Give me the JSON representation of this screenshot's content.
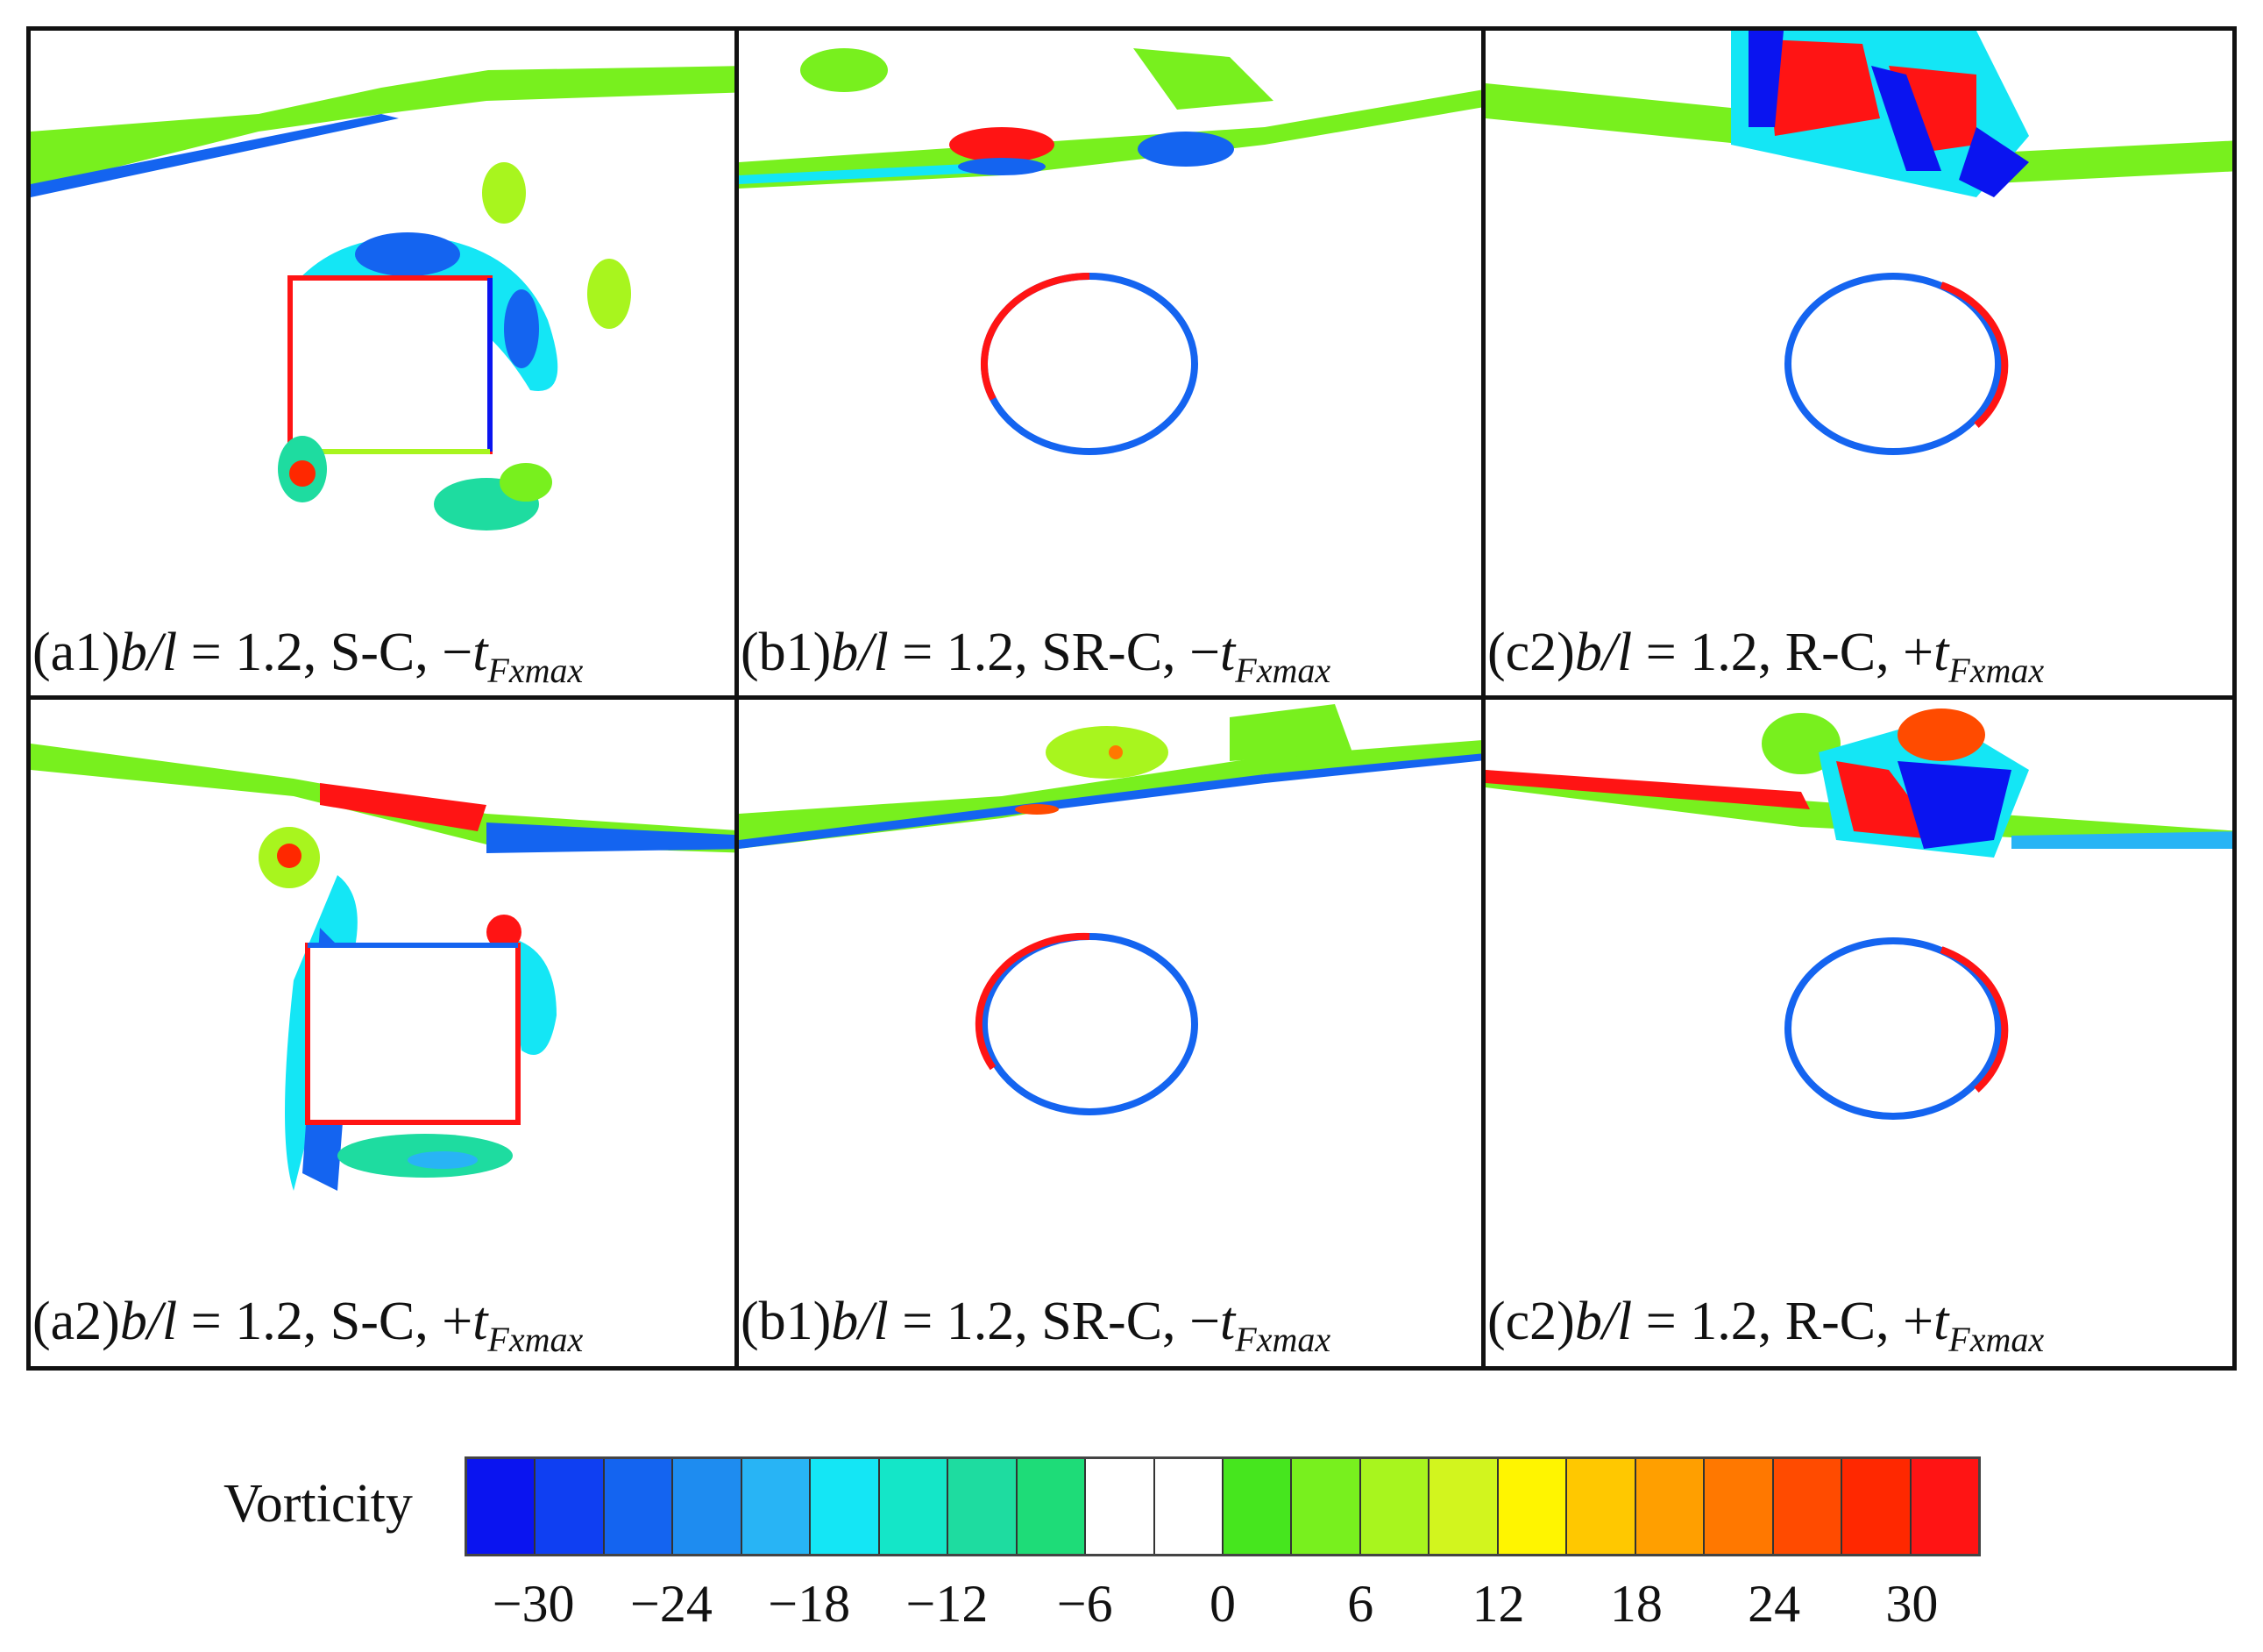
{
  "panels": [
    {
      "id": "a1",
      "label": "(a1)",
      "ratio": "b/l",
      "eq": " = 1.2, ",
      "config": "S-C, ",
      "sign": "−",
      "t": "t",
      "sub": "Fxmax"
    },
    {
      "id": "b1",
      "label": "(b1)",
      "ratio": "b/l",
      "eq": " = 1.2, ",
      "config": "SR-C, ",
      "sign": "−",
      "t": "t",
      "sub": "Fxmax"
    },
    {
      "id": "c2",
      "label": "(c2)",
      "ratio": "b/l",
      "eq": " = 1.2, ",
      "config": "R-C, ",
      "sign": "+",
      "t": "t",
      "sub": "Fxmax"
    },
    {
      "id": "a2",
      "label": "(a2)",
      "ratio": "b/l",
      "eq": " = 1.2, ",
      "config": "S-C, ",
      "sign": "+",
      "t": "t",
      "sub": "Fxmax"
    },
    {
      "id": "b1b",
      "label": "(b1)",
      "ratio": "b/l",
      "eq": " = 1.2, ",
      "config": "SR-C, ",
      "sign": "−",
      "t": "t",
      "sub": "Fxmax"
    },
    {
      "id": "c2b",
      "label": "(c2)",
      "ratio": "b/l",
      "eq": " = 1.2, ",
      "config": "R-C, ",
      "sign": "+",
      "t": "t",
      "sub": "Fxmax"
    }
  ],
  "legend": {
    "title": "Vorticity",
    "ticks": [
      "−30",
      "−24",
      "−18",
      "−12",
      "−6",
      "0",
      "6",
      "12",
      "18",
      "24",
      "30"
    ],
    "colors": [
      "#0a14f0",
      "#0f3ff2",
      "#1464f0",
      "#1e8cf0",
      "#28b4f5",
      "#14e6f5",
      "#14e6c8",
      "#1edca0",
      "#1edc78",
      "#ffffff",
      "#ffffff",
      "#46e61e",
      "#78f01e",
      "#a8f51e",
      "#d2f51e",
      "#fff500",
      "#ffc800",
      "#ff9f00",
      "#ff7800",
      "#ff4b00",
      "#ff2800",
      "#ff1414"
    ],
    "range": [
      -33,
      33
    ]
  }
}
